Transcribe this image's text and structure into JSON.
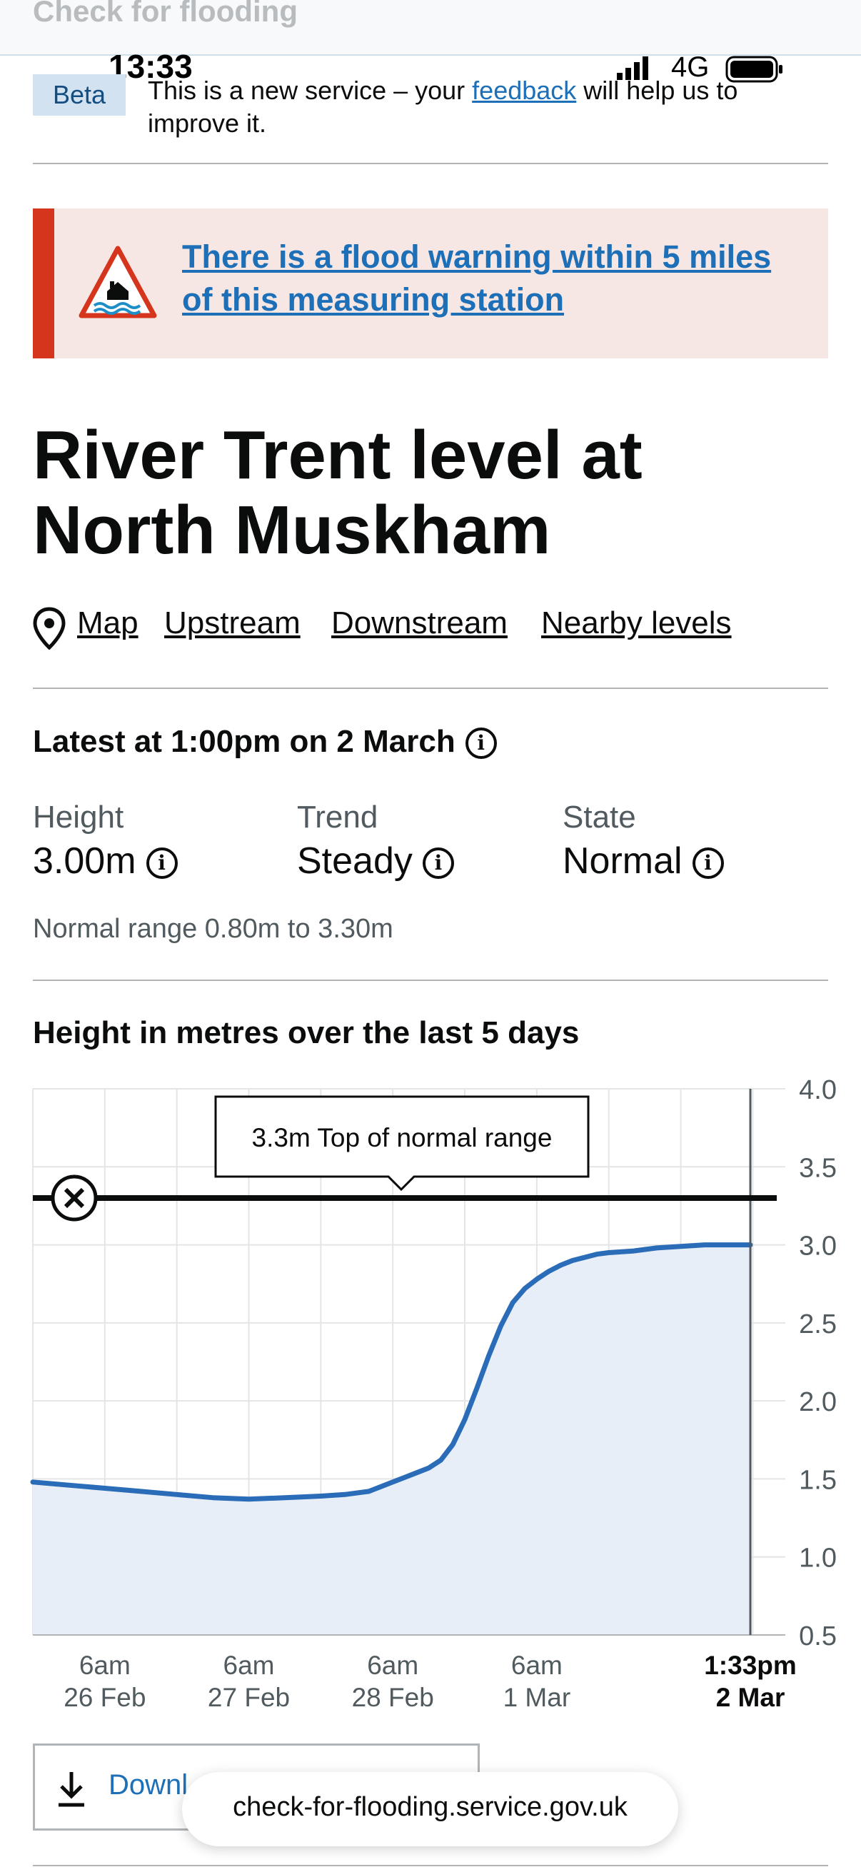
{
  "header": {
    "site_title": "Check for flooding"
  },
  "status_bar": {
    "time": "13:33",
    "network": "4G"
  },
  "beta": {
    "tag": "Beta",
    "text_before": "This is a new service – your ",
    "link": "feedback",
    "text_after": " will help us to improve it."
  },
  "warning": {
    "link": "There is a flood warning within 5 miles of this measuring station",
    "icon": "flood-warning-icon"
  },
  "page": {
    "title": "River Trent level at North Muskham"
  },
  "nav": {
    "map": "Map",
    "upstream": "Upstream",
    "downstream": "Downstream",
    "nearby": "Nearby levels"
  },
  "latest": {
    "title": "Latest at 1:00pm on 2 March",
    "height_label": "Height",
    "height_value": "3.00m",
    "trend_label": "Trend",
    "trend_value": "Steady",
    "state_label": "State",
    "state_value": "Normal",
    "normal_range": "Normal range 0.80m to 3.30m"
  },
  "chart_title": "Height in metres over the last 5 days",
  "chart_data": {
    "type": "area",
    "title": "Height in metres over the last 5 days",
    "ylim": [
      0.5,
      4.0
    ],
    "yticks": [
      "4.0",
      "3.5",
      "3.0",
      "2.5",
      "2.0",
      "1.5",
      "1.0",
      "0.5"
    ],
    "ytick_values": [
      4.0,
      3.5,
      3.0,
      2.5,
      2.0,
      1.5,
      1.0,
      0.5
    ],
    "x_hours": [
      0,
      12,
      24,
      36,
      48,
      60,
      72,
      84,
      96,
      108,
      120
    ],
    "xticks": [
      {
        "line1": "6am",
        "line2": "26 Feb",
        "hour": 12
      },
      {
        "line1": "6am",
        "line2": "27 Feb",
        "hour": 36
      },
      {
        "line1": "6am",
        "line2": "28 Feb",
        "hour": 60
      },
      {
        "line1": "6am",
        "line2": "1 Mar",
        "hour": 84
      },
      {
        "line1": "1:33pm",
        "line2": "2 Mar",
        "hour": 119.6,
        "bold": true
      }
    ],
    "series": [
      {
        "x": [
          0,
          6,
          12,
          18,
          24,
          30,
          36,
          42,
          48,
          52,
          56,
          60,
          62,
          64,
          66,
          68,
          70,
          72,
          74,
          76,
          78,
          80,
          82,
          84,
          86,
          88,
          90,
          92,
          94,
          96,
          100,
          104,
          108,
          112,
          116,
          119.6
        ],
        "y": [
          1.48,
          1.46,
          1.44,
          1.42,
          1.4,
          1.38,
          1.37,
          1.38,
          1.39,
          1.4,
          1.42,
          1.48,
          1.51,
          1.54,
          1.57,
          1.62,
          1.72,
          1.88,
          2.08,
          2.29,
          2.48,
          2.63,
          2.72,
          2.78,
          2.83,
          2.87,
          2.9,
          2.92,
          2.94,
          2.95,
          2.96,
          2.98,
          2.99,
          3.0,
          3.0,
          3.0
        ]
      }
    ],
    "threshold": {
      "value": 3.3,
      "label": "3.3m Top of normal range"
    },
    "grid": true
  },
  "download": {
    "label": "Downl"
  },
  "browser": {
    "url": "check-for-flooding.service.gov.uk"
  }
}
